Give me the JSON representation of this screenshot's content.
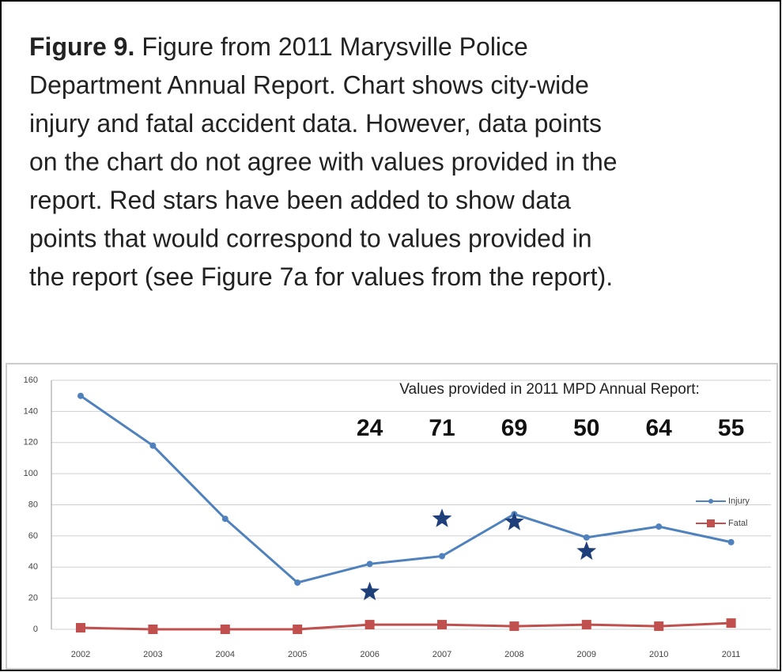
{
  "caption": {
    "label": "Figure 9.",
    "lines": [
      "Figure from 2011 Marysville Police",
      "Department Annual Report. Chart shows city-wide",
      "injury and fatal accident data. However, data points",
      "on the chart do not agree with values provided in the",
      "report. Red stars have been added to show data",
      "points that would correspond to values provided in",
      "the report (see Figure 7a for values from the report)."
    ]
  },
  "chart_data": {
    "type": "line",
    "categories": [
      "2002",
      "2003",
      "2004",
      "2005",
      "2006",
      "2007",
      "2008",
      "2009",
      "2010",
      "2011"
    ],
    "series": [
      {
        "name": "Injury",
        "color": "#4f81bd",
        "values": [
          150,
          118,
          71,
          30,
          42,
          47,
          74,
          59,
          66,
          56
        ]
      },
      {
        "name": "Fatal",
        "color": "#c0504d",
        "values": [
          1,
          0,
          0,
          0,
          3,
          3,
          2,
          3,
          2,
          4
        ]
      }
    ],
    "ylim": [
      0,
      160
    ],
    "yticks": [
      0,
      20,
      40,
      60,
      80,
      100,
      120,
      140,
      160
    ],
    "grid": true,
    "legend": "right",
    "annotation": {
      "text": "Values provided in 2011 MPD Annual Report:",
      "categories": [
        "2006",
        "2007",
        "2008",
        "2009",
        "2010",
        "2011"
      ],
      "values": [
        24,
        71,
        69,
        50,
        64,
        55
      ]
    },
    "stars": {
      "color": "#1f3f7a",
      "categories": [
        "2006",
        "2007",
        "2008",
        "2009"
      ],
      "values": [
        24,
        71,
        69,
        50
      ]
    }
  }
}
